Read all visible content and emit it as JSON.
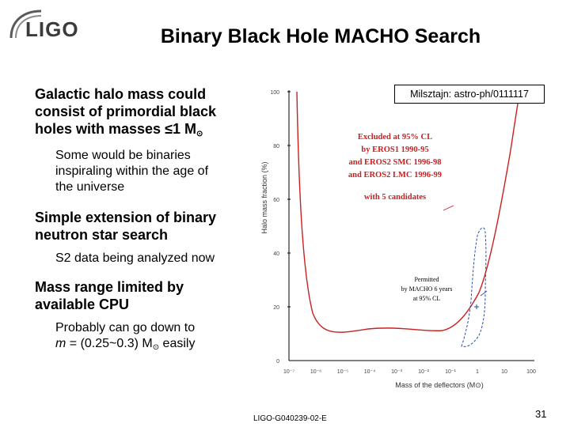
{
  "logo": {
    "text": "LIGO"
  },
  "title": "Binary Black Hole MACHO Search",
  "bullets": {
    "b1_line1": "Galactic halo mass could",
    "b1_line2": "consist of primordial black",
    "b1_line3_pre": "holes with masses ≤1 M",
    "b1_sun": "⊙",
    "b1_sub1": "Some would be binaries",
    "b1_sub2": "inspiraling within the age of",
    "b1_sub3": "the universe",
    "b2_line1": "Simple extension of binary",
    "b2_line2": "neutron star search",
    "b2_sub1": "S2 data being analyzed now",
    "b3_line1": "Mass range limited by",
    "b3_line2": "available CPU",
    "b3_sub1": "Probably can go down to",
    "b3_sub2_m": "m",
    "b3_sub2_mid": " = (0.25~0.3) M",
    "b3_sub2_sun": "⊙",
    "b3_sub2_end": " easily"
  },
  "figure": {
    "citation": "Milsztajn: astro-ph/0111117",
    "ylabel": "Halo mass fraction (%)",
    "xlabel": "Mass of the deflectors (M⊙)",
    "yticks": [
      "100",
      "80",
      "60",
      "40",
      "20",
      "0"
    ],
    "xticks": [
      "10⁻⁷",
      "10⁻⁶",
      "10⁻⁵",
      "10⁻⁴",
      "10⁻³",
      "10⁻²",
      "10⁻¹",
      "1",
      "10",
      "100"
    ],
    "excluded_lines": [
      "Excluded at 95% CL",
      "by  EROS1 1990-95",
      "and EROS2 SMC 1996-98",
      "and EROS2 LMC 1996-99",
      "with 5 candidates"
    ],
    "permitted_lines": [
      "Permitted",
      "by MACHO 6 years",
      "at 95% CL"
    ],
    "colors": {
      "excluded": "#cc1f1f",
      "permitted": "#2a4aa8"
    }
  },
  "footer": "LIGO-G040239-02-E",
  "page_number": "31"
}
